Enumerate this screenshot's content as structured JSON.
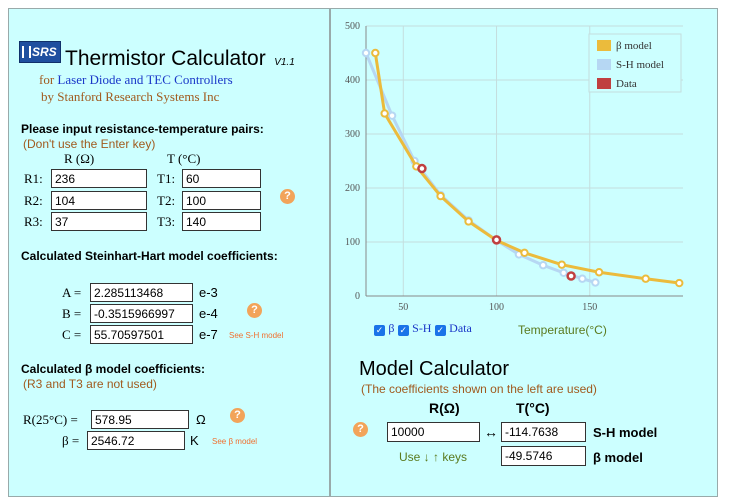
{
  "header": {
    "logo_text": "SRS",
    "title": "Thermistor Calculator",
    "version": "V1.1",
    "subtitle_prefix": "for",
    "subtitle_link": "Laser Diode and TEC Controllers",
    "byline": "by Stanford Research Systems Inc"
  },
  "pairs": {
    "heading": "Please input resistance-temperature pairs:",
    "note": "(Don't use the Enter key)",
    "r_header": "R (Ω)",
    "t_header": "T (°C)",
    "rows": [
      {
        "r_label": "R1:",
        "r_value": "236",
        "t_label": "T1:",
        "t_value": "60"
      },
      {
        "r_label": "R2:",
        "r_value": "104",
        "t_label": "T2:",
        "t_value": "100"
      },
      {
        "r_label": "R3:",
        "r_value": "37",
        "t_label": "T3:",
        "t_value": "140"
      }
    ],
    "help": "?"
  },
  "sh": {
    "heading": "Calculated Steinhart-Hart model coefficients:",
    "rows": [
      {
        "label": "A =",
        "value": "2.285113468",
        "exp": "e-3"
      },
      {
        "label": "B =",
        "value": "-0.3515966997",
        "exp": "e-4"
      },
      {
        "label": "C =",
        "value": "55.70597501",
        "exp": "e-7"
      }
    ],
    "link": "See S-H model",
    "help": "?"
  },
  "beta": {
    "heading": "Calculated β model coefficients:",
    "note": "(R3 and T3 are not used)",
    "r25_label": "R(25°C) =",
    "r25_value": "578.95",
    "r25_unit": "Ω",
    "b_label": "β =",
    "b_value": "2546.72",
    "b_unit": "K",
    "link": "See β model",
    "help": "?"
  },
  "chart_data": {
    "type": "line",
    "xlim": [
      30,
      200
    ],
    "ylim": [
      0,
      500
    ],
    "xticks": [
      50,
      100,
      150
    ],
    "yticks": [
      0,
      100,
      200,
      300,
      400,
      500
    ],
    "grid": true,
    "legend_position": "top-right",
    "xlabel": "Temperature(°C)",
    "series": [
      {
        "name": "β model",
        "color": "#ebbb3c",
        "x": [
          35,
          40,
          57,
          70,
          85,
          100,
          115,
          135,
          155,
          180,
          198
        ],
        "y": [
          450,
          338,
          240,
          185,
          138,
          103,
          80,
          58,
          44,
          32,
          24
        ]
      },
      {
        "name": "S-H model",
        "color": "#b6d7f3",
        "x": [
          30,
          44,
          56,
          70,
          85,
          100,
          112,
          125,
          136,
          146,
          153
        ],
        "y": [
          450,
          334,
          250,
          187,
          140,
          103,
          77,
          57,
          43,
          32,
          25
        ]
      },
      {
        "name": "Data",
        "color": "#c04040",
        "x": [
          60,
          100,
          140
        ],
        "y": [
          236,
          104,
          37
        ]
      }
    ],
    "checkbox_labels": [
      "β",
      "S-H",
      "Data"
    ]
  },
  "model": {
    "title": "Model Calculator",
    "note": "(The coefficients shown on the left are used)",
    "r_header": "R(Ω)",
    "t_header": "T(°C)",
    "r_value": "10000",
    "arrow": "↔",
    "sh_value": "-114.7638",
    "sh_label": "S-H model",
    "beta_value": "-49.5746",
    "beta_label": "β model",
    "keys_hint": "Use ↓ ↑ keys",
    "help": "?"
  }
}
